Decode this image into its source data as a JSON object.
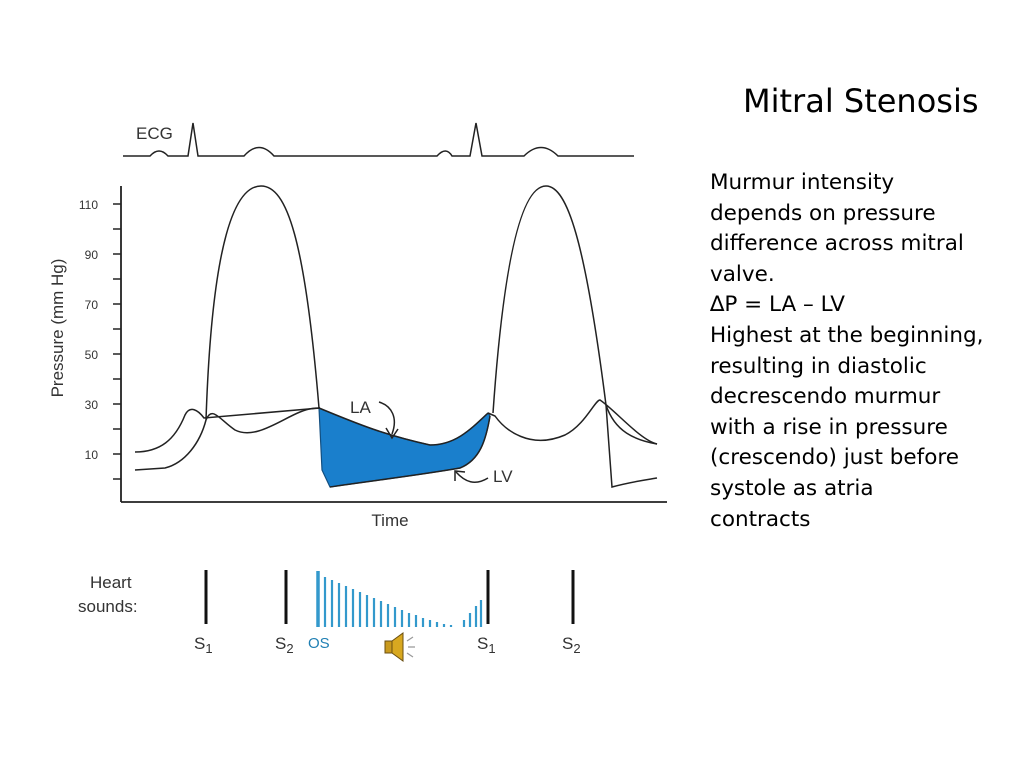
{
  "slide": {
    "title": "Mitral Stenosis",
    "body_lines": [
      "Murmur intensity",
      "depends on pressure",
      "difference across mitral",
      "valve.",
      "∆P = LA – LV",
      "Highest at the beginning,",
      "resulting in diastolic",
      "decrescendo murmur",
      "with a rise in pressure",
      "(crescendo) just before",
      "systole as atria",
      "contracts"
    ]
  },
  "diagram": {
    "ecg_label": "ECG",
    "y_axis_label": "Pressure (mm Hg)",
    "y_ticks": [
      "110",
      "90",
      "70",
      "50",
      "30",
      "10"
    ],
    "x_axis_label": "Time",
    "la_label": "LA",
    "lv_label": "LV",
    "heart_sounds_label_line1": "Heart",
    "heart_sounds_label_line2": "sounds:",
    "sound_labels": {
      "s1_a": "S",
      "s1_a_sub": "1",
      "s2_a": "S",
      "s2_a_sub": "2",
      "os": "OS",
      "s1_b": "S",
      "s1_b_sub": "1",
      "s2_b": "S",
      "s2_b_sub": "2"
    },
    "colors": {
      "pressure_gradient_fill": "#1a7fcc",
      "murmur_bars": "#3399cc",
      "os_label": "#1f7fb3",
      "speaker_icon": "#c99a1e"
    },
    "speaker_icon": "speaker-audio-icon"
  }
}
